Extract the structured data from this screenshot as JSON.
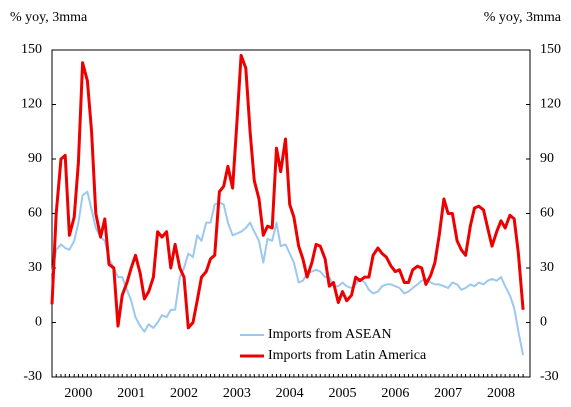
{
  "chart_data": {
    "type": "line",
    "y_label": "% yoy, 3mma",
    "y2_label": "% yoy, 3mma",
    "x": [
      2000,
      2000.08,
      2000.17,
      2000.25,
      2000.33,
      2000.42,
      2000.5,
      2000.58,
      2000.67,
      2000.75,
      2000.83,
      2000.92,
      2001,
      2001.08,
      2001.17,
      2001.25,
      2001.33,
      2001.42,
      2001.5,
      2001.58,
      2001.67,
      2001.75,
      2001.83,
      2001.92,
      2002,
      2002.08,
      2002.17,
      2002.25,
      2002.33,
      2002.42,
      2002.5,
      2002.58,
      2002.67,
      2002.75,
      2002.83,
      2002.92,
      2003,
      2003.08,
      2003.17,
      2003.25,
      2003.33,
      2003.42,
      2003.5,
      2003.58,
      2003.67,
      2003.75,
      2003.83,
      2003.92,
      2004,
      2004.08,
      2004.17,
      2004.25,
      2004.33,
      2004.42,
      2004.5,
      2004.58,
      2004.67,
      2004.75,
      2004.83,
      2004.92,
      2005,
      2005.08,
      2005.17,
      2005.25,
      2005.33,
      2005.42,
      2005.5,
      2005.58,
      2005.67,
      2005.75,
      2005.83,
      2005.92,
      2006,
      2006.08,
      2006.17,
      2006.25,
      2006.33,
      2006.42,
      2006.5,
      2006.58,
      2006.67,
      2006.75,
      2006.83,
      2006.92,
      2007,
      2007.08,
      2007.17,
      2007.25,
      2007.33,
      2007.42,
      2007.5,
      2007.58,
      2007.67,
      2007.75,
      2007.83,
      2007.92,
      2008,
      2008.08,
      2008.17,
      2008.25,
      2008.33,
      2008.42,
      2008.5,
      2008.58,
      2008.67,
      2008.75,
      2008.83,
      2008.92
    ],
    "series": [
      {
        "name": "Imports from ASEAN",
        "color": "#9cc8f0",
        "width": 2,
        "values": [
          27,
          40,
          43,
          41,
          40,
          45,
          55,
          70,
          72,
          62,
          52,
          47,
          45,
          35,
          30,
          25,
          25,
          18,
          12,
          3,
          -2,
          -5,
          -1,
          -3,
          0,
          4,
          3,
          7,
          7,
          25,
          30,
          38,
          36,
          48,
          45,
          55,
          55,
          65,
          66,
          65,
          55,
          48,
          49,
          50,
          52,
          55,
          50,
          45,
          33,
          46,
          45,
          55,
          42,
          43,
          38,
          33,
          22,
          23,
          27,
          28,
          29,
          28,
          25,
          25,
          20,
          20,
          22,
          20,
          19,
          21,
          24,
          22,
          18,
          16,
          17,
          20,
          21,
          21,
          20,
          19,
          16,
          17,
          19,
          21,
          23,
          24,
          22,
          21,
          21,
          20,
          19,
          22,
          21,
          18,
          19,
          21,
          20,
          22,
          21,
          23,
          24,
          23,
          25,
          20,
          15,
          8,
          -5,
          -18
        ]
      },
      {
        "name": "Imports from Latin America",
        "color": "#ee0000",
        "width": 3,
        "values": [
          10,
          60,
          90,
          92,
          48,
          58,
          88,
          143,
          133,
          105,
          60,
          47,
          57,
          32,
          30,
          -2,
          15,
          22,
          30,
          37,
          27,
          13,
          17,
          25,
          50,
          47,
          50,
          30,
          43,
          30,
          25,
          -3,
          0,
          12,
          25,
          28,
          35,
          37,
          72,
          75,
          86,
          74,
          110,
          147,
          140,
          105,
          78,
          68,
          48,
          53,
          52,
          96,
          83,
          101,
          65,
          58,
          42,
          35,
          25,
          33,
          43,
          42,
          35,
          20,
          22,
          11,
          17,
          12,
          15,
          25,
          23,
          25,
          25,
          37,
          41,
          38,
          36,
          31,
          28,
          29,
          22,
          22,
          29,
          31,
          30,
          21,
          26,
          33,
          48,
          68,
          60,
          60,
          45,
          40,
          37,
          53,
          63,
          64,
          62,
          52,
          42,
          50,
          56,
          52,
          59,
          57,
          38,
          7
        ]
      }
    ],
    "xlim": [
      2000,
      2009.05
    ],
    "xticks": [
      {
        "value": 2000.5,
        "label": "2000"
      },
      {
        "value": 2001.5,
        "label": "2001"
      },
      {
        "value": 2002.5,
        "label": "2002"
      },
      {
        "value": 2003.5,
        "label": "2003"
      },
      {
        "value": 2004.5,
        "label": "2004"
      },
      {
        "value": 2005.5,
        "label": "2005"
      },
      {
        "value": 2006.5,
        "label": "2006"
      },
      {
        "value": 2007.5,
        "label": "2007"
      },
      {
        "value": 2008.5,
        "label": "2008"
      }
    ],
    "ylim": [
      -30,
      150
    ],
    "yticks": [
      -30,
      0,
      30,
      60,
      90,
      120,
      150
    ],
    "y2lim": [
      -30,
      150
    ],
    "y2ticks": [
      -30,
      0,
      30,
      60,
      90,
      120,
      150
    ],
    "legend": "bottom-center"
  }
}
